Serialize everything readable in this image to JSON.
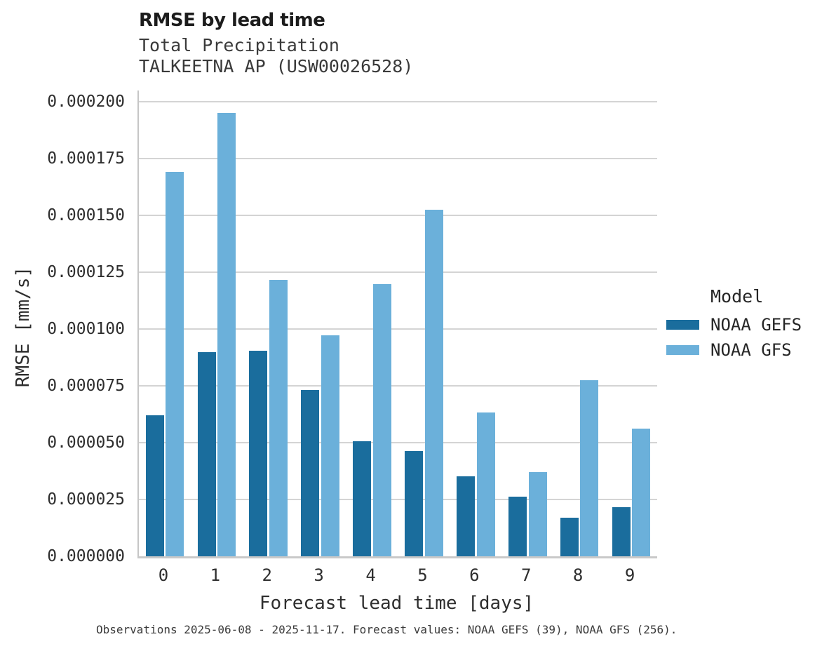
{
  "figure": {
    "title": "RMSE by lead time",
    "subtitle_variable": "Total Precipitation",
    "subtitle_station": "TALKEETNA AP (USW00026528)",
    "footer": "Observations 2025-06-08 - 2025-11-17. Forecast values: NOAA GEFS (39), NOAA GFS (256)."
  },
  "legend": {
    "title": "Model",
    "entries": [
      {
        "label": "NOAA GEFS",
        "color": "#1a6d9d"
      },
      {
        "label": "NOAA GFS",
        "color": "#6bb0da"
      }
    ]
  },
  "chart_data": {
    "type": "bar",
    "title": "RMSE by lead time",
    "subtitle": "Total Precipitation — TALKEETNA AP (USW00026528)",
    "xlabel": "Forecast lead time [days]",
    "ylabel": "RMSE [mm/s]",
    "categories": [
      "0",
      "1",
      "2",
      "3",
      "4",
      "5",
      "6",
      "7",
      "8",
      "9"
    ],
    "series": [
      {
        "name": "NOAA GEFS",
        "color": "#1a6d9d",
        "values": [
          6.2e-05,
          9e-05,
          9.05e-05,
          7.33e-05,
          5.07e-05,
          4.64e-05,
          3.53e-05,
          2.61e-05,
          1.71e-05,
          2.16e-05
        ]
      },
      {
        "name": "NOAA GFS",
        "color": "#6bb0da",
        "values": [
          0.0001692,
          0.000195,
          0.0001218,
          9.73e-05,
          0.0001197,
          0.0001525,
          6.33e-05,
          3.71e-05,
          7.74e-05,
          5.63e-05
        ]
      }
    ],
    "ylim": [
      0,
      0.000205
    ],
    "yticks": [
      0.0,
      2.5e-05,
      5e-05,
      7.5e-05,
      0.0001,
      0.000125,
      0.00015,
      0.000175,
      0.0002
    ],
    "ytick_labels": [
      "0.000000",
      "0.000025",
      "0.000050",
      "0.000075",
      "0.000100",
      "0.000125",
      "0.000150",
      "0.000175",
      "0.000200"
    ],
    "grid": true,
    "legend_position": "center-right"
  }
}
